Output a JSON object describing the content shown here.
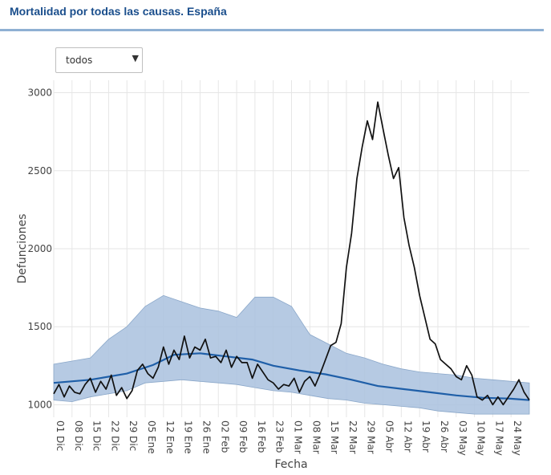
{
  "header": {
    "title": "Mortalidad por todas las causas. España"
  },
  "filter": {
    "selected": "todos"
  },
  "chart_data": {
    "type": "line",
    "xlabel": "Fecha",
    "ylabel": "Defunciones",
    "x_range": [
      "2019-12-01",
      "2020-05-31"
    ],
    "ylim": [
      920,
      3080
    ],
    "y_ticks": [
      1000,
      1500,
      2000,
      2500,
      3000
    ],
    "x_tick_labels": [
      "01 Dic",
      "08 Dic",
      "15 Dic",
      "22 Dic",
      "29 Dic",
      "05 Ene",
      "12 Ene",
      "19 Ene",
      "26 Ene",
      "02 Feb",
      "09 Feb",
      "16 Feb",
      "23 Feb",
      "01 Mar",
      "08 Mar",
      "15 Mar",
      "22 Mar",
      "29 Mar",
      "05 Abr",
      "12 Abr",
      "19 Abr",
      "26 Abr",
      "03 May",
      "10 May",
      "17 May",
      "24 May"
    ],
    "grid": true,
    "colors": {
      "observed": "#111111",
      "expected": "#1f5fa8",
      "band": "#a9c1de"
    },
    "series": [
      {
        "role": "observed",
        "x": [
          "2019-12-01",
          "2019-12-03",
          "2019-12-05",
          "2019-12-07",
          "2019-12-09",
          "2019-12-11",
          "2019-12-13",
          "2019-12-15",
          "2019-12-17",
          "2019-12-19",
          "2019-12-21",
          "2019-12-23",
          "2019-12-25",
          "2019-12-27",
          "2019-12-29",
          "2019-12-31",
          "2020-01-02",
          "2020-01-04",
          "2020-01-06",
          "2020-01-08",
          "2020-01-10",
          "2020-01-12",
          "2020-01-14",
          "2020-01-16",
          "2020-01-18",
          "2020-01-20",
          "2020-01-22",
          "2020-01-24",
          "2020-01-26",
          "2020-01-28",
          "2020-01-30",
          "2020-02-01",
          "2020-02-03",
          "2020-02-05",
          "2020-02-07",
          "2020-02-09",
          "2020-02-11",
          "2020-02-13",
          "2020-02-15",
          "2020-02-17",
          "2020-02-19",
          "2020-02-21",
          "2020-02-23",
          "2020-02-25",
          "2020-02-27",
          "2020-02-29",
          "2020-03-02",
          "2020-03-04",
          "2020-03-06",
          "2020-03-08",
          "2020-03-10",
          "2020-03-12",
          "2020-03-14",
          "2020-03-16",
          "2020-03-18",
          "2020-03-20",
          "2020-03-22",
          "2020-03-24",
          "2020-03-26",
          "2020-03-28",
          "2020-03-30",
          "2020-04-01",
          "2020-04-03",
          "2020-04-05",
          "2020-04-07",
          "2020-04-09",
          "2020-04-11",
          "2020-04-13",
          "2020-04-15",
          "2020-04-17",
          "2020-04-19",
          "2020-04-21",
          "2020-04-23",
          "2020-04-25",
          "2020-04-27",
          "2020-04-29",
          "2020-05-01",
          "2020-05-03",
          "2020-05-05",
          "2020-05-07",
          "2020-05-09",
          "2020-05-11",
          "2020-05-13",
          "2020-05-15",
          "2020-05-17",
          "2020-05-19",
          "2020-05-21",
          "2020-05-23",
          "2020-05-25",
          "2020-05-27",
          "2020-05-29",
          "2020-05-31"
        ],
        "values": [
          1070,
          1130,
          1050,
          1120,
          1080,
          1070,
          1130,
          1170,
          1080,
          1150,
          1100,
          1190,
          1060,
          1110,
          1040,
          1090,
          1220,
          1260,
          1200,
          1170,
          1240,
          1370,
          1260,
          1350,
          1290,
          1440,
          1300,
          1370,
          1350,
          1420,
          1300,
          1310,
          1270,
          1350,
          1240,
          1310,
          1270,
          1270,
          1170,
          1260,
          1210,
          1160,
          1140,
          1100,
          1130,
          1120,
          1170,
          1080,
          1150,
          1180,
          1120,
          1200,
          1290,
          1380,
          1400,
          1520,
          1880,
          2100,
          2450,
          2650,
          2820,
          2700,
          2940,
          2770,
          2600,
          2450,
          2520,
          2200,
          2020,
          1880,
          1700,
          1560,
          1420,
          1390,
          1290,
          1260,
          1230,
          1180,
          1160,
          1250,
          1190,
          1050,
          1030,
          1060,
          1000,
          1050,
          1000,
          1050,
          1100,
          1160,
          1080,
          1030
        ]
      },
      {
        "role": "expected",
        "x": [
          "2019-12-01",
          "2019-12-15",
          "2019-12-29",
          "2020-01-08",
          "2020-01-16",
          "2020-01-26",
          "2020-02-05",
          "2020-02-15",
          "2020-02-23",
          "2020-03-04",
          "2020-03-14",
          "2020-03-24",
          "2020-04-03",
          "2020-04-13",
          "2020-04-23",
          "2020-05-03",
          "2020-05-13",
          "2020-05-23",
          "2020-05-31"
        ],
        "values": [
          1140,
          1160,
          1200,
          1255,
          1320,
          1330,
          1310,
          1290,
          1250,
          1220,
          1195,
          1160,
          1120,
          1100,
          1080,
          1060,
          1045,
          1040,
          1030
        ]
      },
      {
        "role": "band",
        "x": [
          "2019-12-01",
          "2019-12-08",
          "2019-12-15",
          "2019-12-22",
          "2019-12-29",
          "2020-01-05",
          "2020-01-12",
          "2020-01-19",
          "2020-01-26",
          "2020-02-02",
          "2020-02-09",
          "2020-02-16",
          "2020-02-23",
          "2020-03-01",
          "2020-03-08",
          "2020-03-15",
          "2020-03-22",
          "2020-03-29",
          "2020-04-05",
          "2020-04-12",
          "2020-04-19",
          "2020-04-26",
          "2020-05-03",
          "2020-05-10",
          "2020-05-17",
          "2020-05-24",
          "2020-05-31"
        ],
        "lower": [
          1030,
          1020,
          1050,
          1070,
          1090,
          1140,
          1150,
          1160,
          1150,
          1140,
          1130,
          1110,
          1090,
          1080,
          1060,
          1040,
          1030,
          1010,
          1000,
          990,
          980,
          960,
          950,
          940,
          940,
          940,
          940
        ],
        "upper": [
          1260,
          1280,
          1300,
          1420,
          1500,
          1630,
          1700,
          1660,
          1620,
          1600,
          1560,
          1690,
          1690,
          1630,
          1450,
          1390,
          1330,
          1300,
          1260,
          1230,
          1210,
          1200,
          1190,
          1170,
          1160,
          1150,
          1140
        ]
      }
    ]
  }
}
